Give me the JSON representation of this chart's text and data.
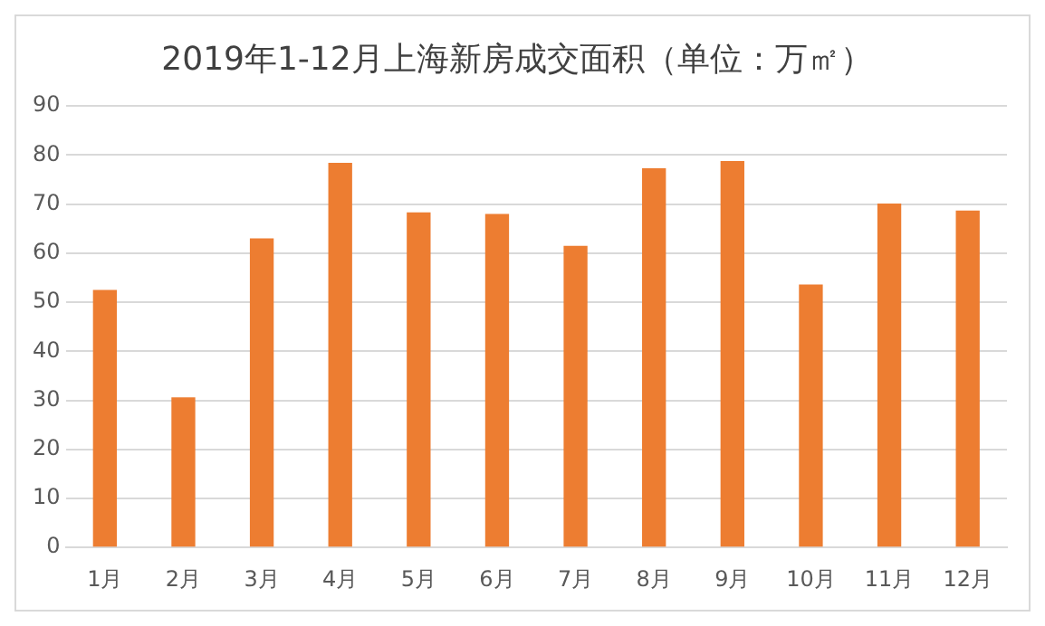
{
  "chart_data": {
    "type": "bar",
    "title": "2019年1-12月上海新房成交面积（单位：万㎡）",
    "categories": [
      "1月",
      "2月",
      "3月",
      "4月",
      "5月",
      "6月",
      "7月",
      "8月",
      "9月",
      "10月",
      "11月",
      "12月"
    ],
    "values": [
      52.5,
      30.6,
      63,
      78.4,
      68.3,
      68,
      61.5,
      77.3,
      78.8,
      53.6,
      70.1,
      68.7
    ],
    "color": "#ed7d31",
    "ylim": [
      0,
      90
    ],
    "yticks": [
      0,
      10,
      20,
      30,
      40,
      50,
      60,
      70,
      80,
      90
    ],
    "grid": "y",
    "legend": false
  }
}
